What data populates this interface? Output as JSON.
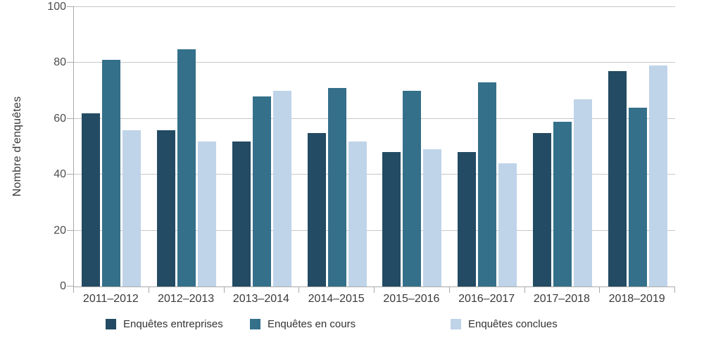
{
  "chart_data": {
    "type": "bar",
    "title": "",
    "xlabel": "",
    "ylabel": "Nombre d'enquêtes",
    "ylim": [
      0,
      100
    ],
    "yticks": [
      0,
      20,
      40,
      60,
      80,
      100
    ],
    "grid": true,
    "legend_position": "bottom",
    "categories": [
      "2011–2012",
      "2012–2013",
      "2013–2014",
      "2014–2015",
      "2015–2016",
      "2016–2017",
      "2017–2018",
      "2018–2019"
    ],
    "series": [
      {
        "name": "Enquêtes entreprises",
        "color": "#234B63",
        "values": [
          62,
          56,
          52,
          55,
          48,
          48,
          55,
          77
        ]
      },
      {
        "name": "Enquêtes en cours",
        "color": "#34708A",
        "values": [
          81,
          85,
          68,
          71,
          70,
          73,
          59,
          64
        ]
      },
      {
        "name": "Enquêtes conclues",
        "color": "#BFD4E9",
        "values": [
          56,
          52,
          70,
          52,
          49,
          44,
          67,
          79
        ]
      }
    ]
  },
  "layout_colors": {
    "gridline": "#C8C8C8",
    "axis": "#A9A9A9",
    "tick_text": "#4D4D4D",
    "label_text": "#3A3A3A"
  },
  "legend_x_positions": [
    150,
    355,
    640
  ]
}
